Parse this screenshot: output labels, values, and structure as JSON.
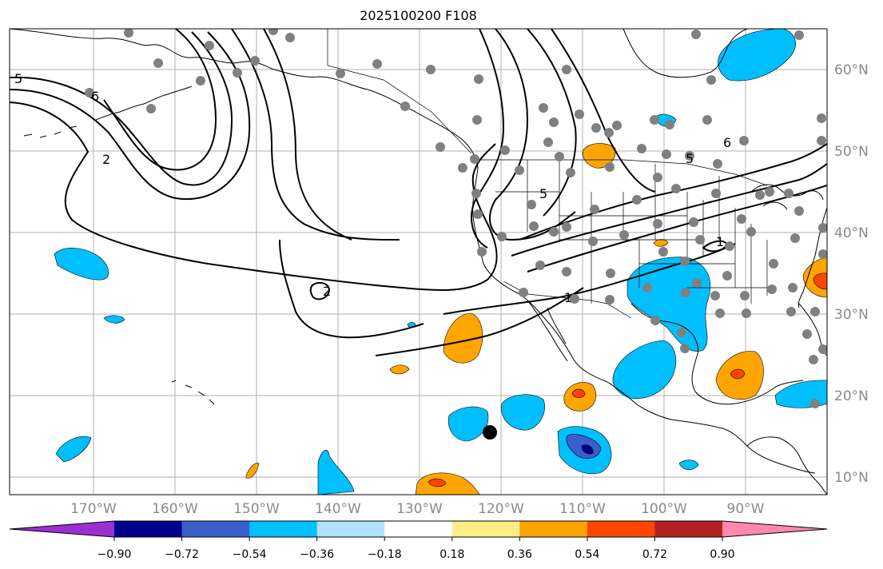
{
  "title": "2025100200 F108",
  "map": {
    "lon_ticks": [
      "170°W",
      "160°W",
      "150°W",
      "140°W",
      "130°W",
      "120°W",
      "110°W",
      "100°W",
      "90°W"
    ],
    "lat_ticks": [
      "60°N",
      "50°N",
      "40°N",
      "30°N",
      "20°N",
      "10°N"
    ],
    "contour_labels": [
      "5",
      "6",
      "2",
      "2",
      "5",
      "6",
      "5",
      "1",
      "1"
    ],
    "tick_color": "#8a8a8a",
    "station_color": "#808080",
    "contour_color": "#000000"
  },
  "colorbar": {
    "ticks": [
      "−0.90",
      "−0.72",
      "−0.54",
      "−0.36",
      "−0.18",
      "0.18",
      "0.36",
      "0.54",
      "0.72",
      "0.90"
    ],
    "colors": [
      "#9b30d0",
      "#00008b",
      "#3a5fcd",
      "#00bfff",
      "#b0e2ff",
      "#ffffff",
      "#ffee88",
      "#ffa500",
      "#ff4500",
      "#b22222",
      "#ff88b0"
    ]
  }
}
